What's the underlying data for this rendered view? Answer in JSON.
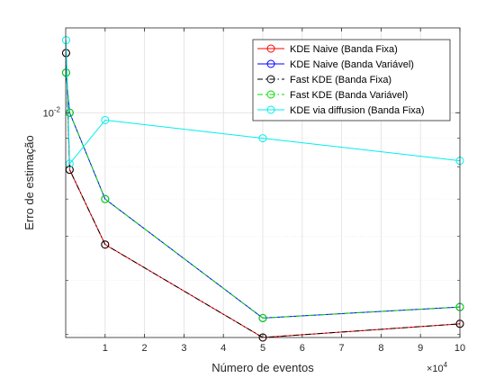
{
  "chart_data": {
    "type": "line",
    "title": "",
    "xlabel": "Número de eventos",
    "ylabel": "Erro de estimação",
    "x_scale": "linear",
    "y_scale": "log",
    "x_multiplier_label": "×10",
    "x_multiplier_exponent": "4",
    "xlim": [
      0,
      100000
    ],
    "ylim": [
      0.00395,
      0.0142
    ],
    "grid": true,
    "legend_position": "top-right",
    "x_ticks": [
      {
        "value": 10000,
        "label": "1"
      },
      {
        "value": 20000,
        "label": "2"
      },
      {
        "value": 30000,
        "label": "3"
      },
      {
        "value": 40000,
        "label": "4"
      },
      {
        "value": 50000,
        "label": "5"
      },
      {
        "value": 60000,
        "label": "6"
      },
      {
        "value": 70000,
        "label": "7"
      },
      {
        "value": 80000,
        "label": "8"
      },
      {
        "value": 90000,
        "label": "9"
      },
      {
        "value": 100000,
        "label": "10"
      }
    ],
    "y_ticks": [
      {
        "value": 0.01,
        "base": "10",
        "exp": "-2"
      }
    ],
    "series": [
      {
        "name": "KDE Naive (Banda Fixa)",
        "color": "#ff0000",
        "dash": "solid",
        "x": [
          100,
          1000,
          10000,
          50000,
          100000
        ],
        "y": [
          0.0128,
          0.0079,
          0.0058,
          0.00395,
          0.00418
        ]
      },
      {
        "name": "KDE Naive (Banda Variável)",
        "color": "#0000ff",
        "dash": "solid",
        "x": [
          100,
          1000,
          10000,
          50000,
          100000
        ],
        "y": [
          0.0118,
          0.01,
          0.007,
          0.00428,
          0.00448
        ]
      },
      {
        "name": "Fast KDE (Banda Fixa)",
        "color": "#000000",
        "dash": "dashdot",
        "x": [
          100,
          1000,
          10000,
          50000,
          100000
        ],
        "y": [
          0.0128,
          0.0079,
          0.0058,
          0.00395,
          0.00418
        ]
      },
      {
        "name": "Fast KDE (Banda Variável)",
        "color": "#00dd00",
        "dash": "dashdot",
        "x": [
          100,
          1000,
          10000,
          50000,
          100000
        ],
        "y": [
          0.0118,
          0.01,
          0.007,
          0.00428,
          0.00448
        ]
      },
      {
        "name": "KDE via diffusion (Banda Fixa)",
        "color": "#00eeee",
        "dash": "solid",
        "x": [
          100,
          1000,
          10000,
          50000,
          100000
        ],
        "y": [
          0.0135,
          0.0081,
          0.0097,
          0.009,
          0.0082
        ]
      }
    ]
  }
}
